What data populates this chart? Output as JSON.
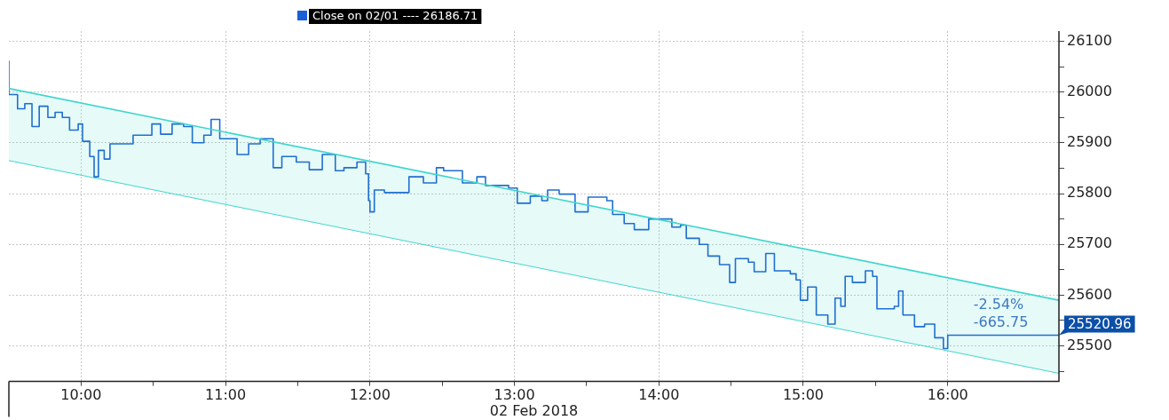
{
  "chart_data": {
    "type": "step",
    "xlabel": "02 Feb 2018",
    "xlim": [
      9.5,
      16.77
    ],
    "ylim": [
      25430,
      26120
    ],
    "xticks": [
      {
        "value": 10,
        "label": "10:00"
      },
      {
        "value": 10.5,
        "label": null
      },
      {
        "value": 11,
        "label": "11:00"
      },
      {
        "value": 11.5,
        "label": null
      },
      {
        "value": 12,
        "label": "12:00"
      },
      {
        "value": 12.5,
        "label": null
      },
      {
        "value": 13,
        "label": "13:00"
      },
      {
        "value": 13.5,
        "label": null
      },
      {
        "value": 14,
        "label": "14:00"
      },
      {
        "value": 14.5,
        "label": null
      },
      {
        "value": 15,
        "label": "15:00"
      },
      {
        "value": 15.5,
        "label": null
      },
      {
        "value": 16,
        "label": "16:00"
      }
    ],
    "yticks": [
      {
        "value": 25450,
        "label": null
      },
      25500,
      {
        "value": 25550,
        "label": null
      },
      25600,
      {
        "value": 25650,
        "label": null
      },
      25700,
      {
        "value": 25750,
        "label": null
      },
      25800,
      {
        "value": 25850,
        "label": null
      },
      25900,
      {
        "value": 25950,
        "label": null
      },
      26000,
      {
        "value": 26050,
        "label": null
      },
      26100
    ],
    "grid": true,
    "legend": false,
    "series": [
      {
        "type": "line",
        "color": "#3fd6cc",
        "x": [
          9.5,
          16.77
        ],
        "values": [
          26007,
          25590
        ]
      },
      {
        "type": "line",
        "color": "#3fd6cc",
        "x": [
          9.5,
          16.77
        ],
        "values": [
          25865,
          25446
        ],
        "lower": [
          25865,
          25446
        ],
        "upper": [
          26007,
          25590
        ]
      },
      {
        "color": "#1f6fd0",
        "x": [
          9.5,
          9.5,
          9.56,
          9.61,
          9.66,
          9.71,
          9.77,
          9.82,
          9.87,
          9.92,
          9.98,
          10.01,
          10.06,
          10.09,
          10.12,
          10.16,
          10.2,
          10.3,
          10.36,
          10.49,
          10.55,
          10.63,
          10.71,
          10.77,
          10.85,
          10.9,
          10.96,
          11.08,
          11.16,
          11.24,
          11.33,
          11.39,
          11.49,
          11.58,
          11.67,
          11.76,
          11.82,
          11.91,
          11.97,
          11.99,
          12,
          12.03,
          12.1,
          12.19,
          12.27,
          12.37,
          12.46,
          12.51,
          12.64,
          12.74,
          12.8,
          12.96,
          13.02,
          13.11,
          13.19,
          13.23,
          13.31,
          13.42,
          13.51,
          13.64,
          13.68,
          13.76,
          13.83,
          13.93,
          14.01,
          14.09,
          14.15,
          14.19,
          14.28,
          14.34,
          14.42,
          14.49,
          14.53,
          14.62,
          14.66,
          14.74,
          14.8,
          14.91,
          14.95,
          14.98,
          15.03,
          15.09,
          15.17,
          15.22,
          15.26,
          15.29,
          15.34,
          15.43,
          15.48,
          15.51,
          15.63,
          15.66,
          15.69,
          15.77,
          15.84,
          15.91,
          15.97,
          16,
          16.08,
          16.77
        ],
        "values": [
          26062,
          25995,
          25967,
          25977,
          25932,
          25972,
          25950,
          25960,
          25950,
          25925,
          25937,
          25903,
          25873,
          25833,
          25885,
          25868,
          25898,
          25898,
          25915,
          25937,
          25917,
          25937,
          25932,
          25900,
          25915,
          25946,
          25908,
          25877,
          25898,
          25908,
          25851,
          25873,
          25862,
          25847,
          25877,
          25845,
          25851,
          25862,
          25839,
          25786,
          25764,
          25807,
          25802,
          25802,
          25833,
          25821,
          25851,
          25845,
          25821,
          25833,
          25816,
          25811,
          25781,
          25795,
          25786,
          25807,
          25799,
          25764,
          25793,
          25786,
          25759,
          25741,
          25729,
          25750,
          25750,
          25734,
          25738,
          25712,
          25700,
          25677,
          25660,
          25625,
          25672,
          25665,
          25646,
          25682,
          25648,
          25642,
          25630,
          25590,
          25616,
          25561,
          25543,
          25594,
          25578,
          25637,
          25625,
          25648,
          25637,
          25573,
          25578,
          25608,
          25561,
          25538,
          25543,
          25516,
          25495,
          25521,
          25521,
          25521
        ]
      }
    ],
    "annotations": [
      "Close on 02/01 ---- 26186.71",
      "-2.54%",
      "-665.75",
      {
        "text": "25520.96",
        "x": 16.77,
        "y": 25520.96
      }
    ]
  }
}
